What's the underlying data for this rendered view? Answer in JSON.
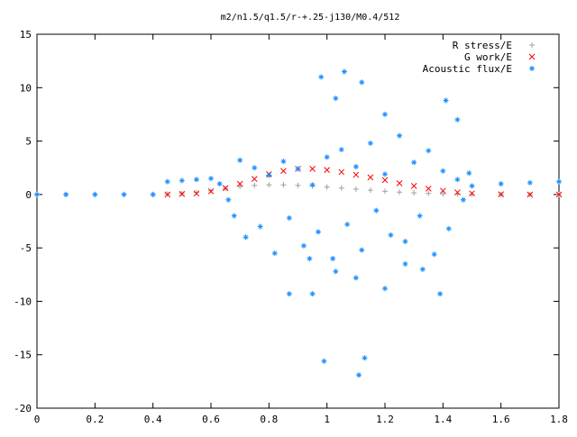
{
  "chart_data": {
    "type": "scatter",
    "title": "m2/n1.5/q1.5/r-+.25-j130/M0.4/512",
    "xlabel": "",
    "ylabel": "",
    "xlim": [
      0,
      1.8
    ],
    "ylim": [
      -20,
      15
    ],
    "x_ticks": [
      "0",
      "0.2",
      "0.4",
      "0.6",
      "0.8",
      "1",
      "1.2",
      "1.4",
      "1.6",
      "1.8"
    ],
    "y_ticks": [
      "-20",
      "-15",
      "-10",
      "-5",
      "0",
      "5",
      "10",
      "15"
    ],
    "grid": false,
    "legend_position": "top-right",
    "series": [
      {
        "name": "R stress/E",
        "marker": "+",
        "color": "#a0a0a0",
        "x": [
          0,
          0.1,
          0.2,
          0.3,
          0.4,
          0.45,
          0.5,
          0.55,
          0.6,
          0.65,
          0.7,
          0.75,
          0.8,
          0.85,
          0.9,
          0.95,
          1.0,
          1.05,
          1.1,
          1.15,
          1.2,
          1.25,
          1.3,
          1.35,
          1.4,
          1.45,
          1.5,
          1.6,
          1.7,
          1.8
        ],
        "y": [
          0,
          0,
          0,
          0,
          0,
          0.05,
          0.1,
          0.2,
          0.35,
          0.55,
          0.75,
          0.85,
          0.9,
          0.9,
          0.85,
          0.8,
          0.7,
          0.6,
          0.5,
          0.4,
          0.3,
          0.22,
          0.15,
          0.1,
          0.05,
          0.03,
          0.02,
          0,
          0,
          0
        ]
      },
      {
        "name": "G work/E",
        "marker": "x",
        "color": "#ff0000",
        "x": [
          0.45,
          0.5,
          0.55,
          0.6,
          0.65,
          0.7,
          0.75,
          0.8,
          0.85,
          0.9,
          0.95,
          1.0,
          1.05,
          1.1,
          1.15,
          1.2,
          1.25,
          1.3,
          1.35,
          1.4,
          1.45,
          1.5,
          1.6,
          1.7,
          1.8
        ],
        "y": [
          0.0,
          0.05,
          0.1,
          0.3,
          0.6,
          1.0,
          1.45,
          1.9,
          2.2,
          2.4,
          2.4,
          2.3,
          2.1,
          1.85,
          1.6,
          1.35,
          1.05,
          0.8,
          0.55,
          0.35,
          0.2,
          0.1,
          0.02,
          0.0,
          0.0
        ]
      },
      {
        "name": "Acoustic flux/E",
        "marker": "*",
        "color": "#1e90ff",
        "x": [
          0,
          0.1,
          0.2,
          0.3,
          0.4,
          0.45,
          0.5,
          0.55,
          0.6,
          0.63,
          0.66,
          0.68,
          0.7,
          0.72,
          0.75,
          0.77,
          0.8,
          0.82,
          0.85,
          0.87,
          0.9,
          0.92,
          0.95,
          0.97,
          1.0,
          1.02,
          1.05,
          1.07,
          1.1,
          1.12,
          1.15,
          1.17,
          1.2,
          1.22,
          1.25,
          1.27,
          1.3,
          1.32,
          1.35,
          1.37,
          1.4,
          1.42,
          1.45,
          1.47,
          0.98,
          1.06,
          1.12,
          1.03,
          1.2,
          1.41,
          1.45,
          0.87,
          0.95,
          1.1,
          1.2,
          1.39,
          0.99,
          1.13,
          1.11,
          0.94,
          1.03,
          1.27,
          1.33,
          1.49,
          1.5,
          1.6,
          1.7,
          1.8
        ],
        "y": [
          0,
          0,
          0,
          0,
          0,
          1.2,
          1.3,
          1.4,
          1.5,
          1.0,
          -0.5,
          -2.0,
          3.2,
          -4.0,
          2.5,
          -3.0,
          1.8,
          -5.5,
          3.1,
          -2.2,
          2.4,
          -4.8,
          0.9,
          -3.5,
          3.5,
          -6.0,
          4.2,
          -2.8,
          2.6,
          -5.2,
          4.8,
          -1.5,
          1.9,
          -3.8,
          5.5,
          -4.4,
          3.0,
          -2.0,
          4.1,
          -5.6,
          2.2,
          -3.2,
          1.4,
          -0.5,
          11.0,
          11.5,
          10.5,
          9.0,
          7.5,
          8.8,
          7.0,
          -9.3,
          -9.3,
          -7.8,
          -8.8,
          -9.3,
          -15.6,
          -15.3,
          -16.9,
          -6.0,
          -7.2,
          -6.5,
          -7.0,
          2.0,
          0.8,
          1.0,
          1.1,
          1.2
        ]
      }
    ]
  }
}
